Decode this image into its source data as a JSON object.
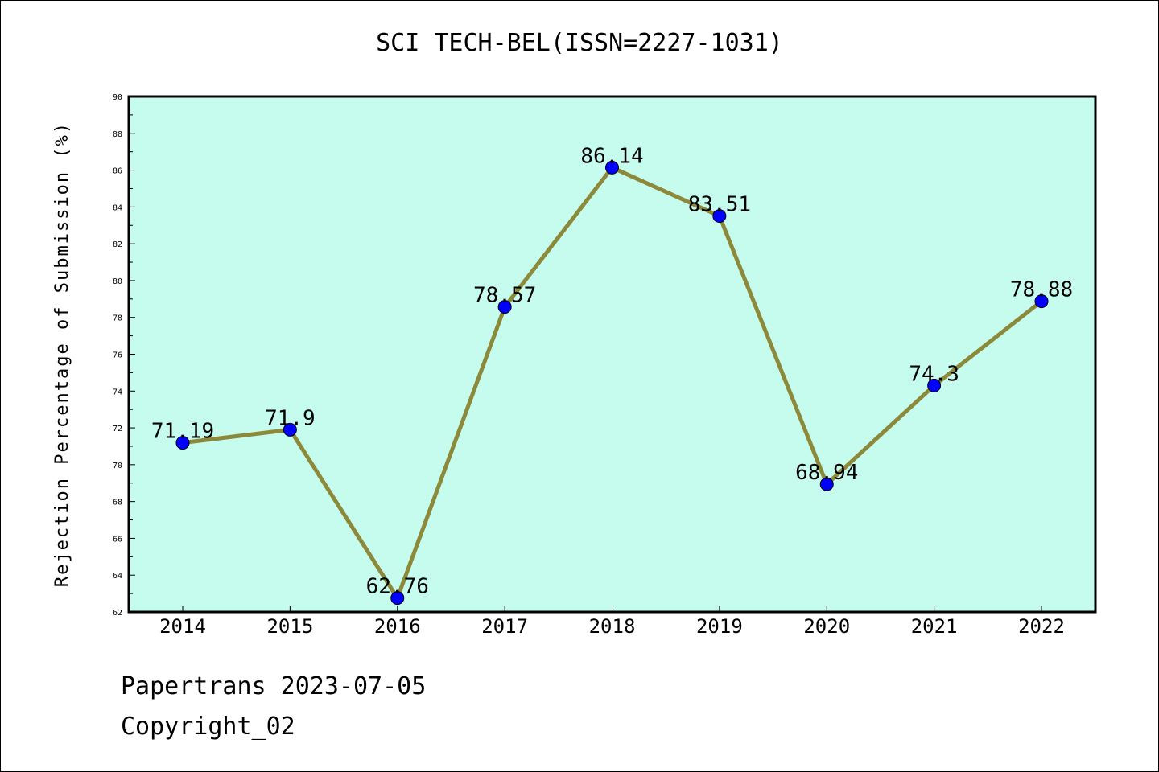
{
  "chart_data": {
    "type": "line",
    "title": "SCI TECH-BEL(ISSN=2227-1031)",
    "ylabel": "Rejection Percentage of Submission (%)",
    "xlabel": "",
    "categories": [
      "2014",
      "2015",
      "2016",
      "2017",
      "2018",
      "2019",
      "2020",
      "2021",
      "2022"
    ],
    "values": [
      71.19,
      71.9,
      62.76,
      78.57,
      86.14,
      83.51,
      68.94,
      74.3,
      78.88
    ],
    "data_labels": [
      "71.19",
      "71.9",
      "62.76",
      "78.57",
      "86.14",
      "83.51",
      "68.94",
      "74.3",
      "78.88"
    ],
    "ylim": [
      62,
      90
    ],
    "yticks": [
      62,
      64,
      66,
      68,
      70,
      72,
      74,
      76,
      78,
      80,
      82,
      84,
      86,
      88,
      90
    ],
    "grid": false,
    "legend": "none",
    "colors": {
      "plot_background": "#c6fcee",
      "line": "#8c8a3a",
      "marker": "#0000ff"
    }
  },
  "footer": {
    "line1": "Papertrans 2023-07-05",
    "line2": "Copyright_02"
  }
}
